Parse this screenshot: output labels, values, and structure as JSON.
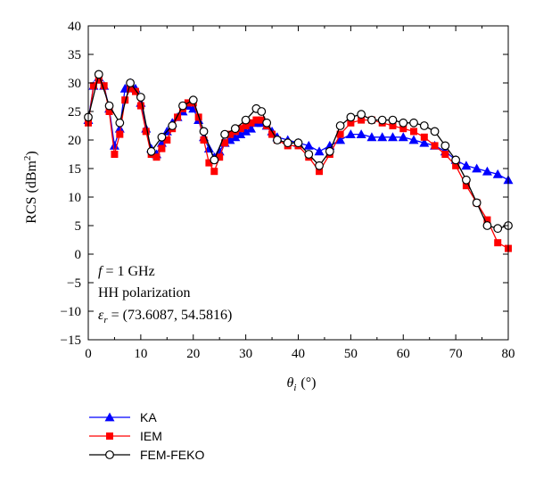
{
  "chart_data": {
    "type": "line",
    "xlabel_symbol": "θ",
    "xlabel_sub": "i",
    "xlabel_unit": "(°)",
    "ylabel_text": "RCS (dBm",
    "ylabel_sup": "2",
    "ylabel_close": ")",
    "xlim": [
      0,
      80
    ],
    "ylim": [
      -15,
      40
    ],
    "xticks": [
      0,
      10,
      20,
      30,
      40,
      50,
      60,
      70,
      80
    ],
    "yticks": [
      -15,
      -10,
      -5,
      0,
      5,
      10,
      15,
      20,
      25,
      30,
      35,
      40
    ],
    "grid": false,
    "legend_position": "bottom-left",
    "annotations": {
      "freq_var": "f",
      "freq_rest": " = 1 GHz",
      "polarization": "HH polarization",
      "eps_symbol": "ε",
      "eps_sub": "r",
      "eps_rest": " = (73.6087, 54.5816)"
    },
    "series": [
      {
        "name": "KA",
        "color": "#0000ff",
        "marker": "triangle",
        "x": [
          0,
          1,
          2,
          3,
          4,
          5,
          6,
          7,
          8,
          9,
          10,
          11,
          12,
          13,
          14,
          15,
          16,
          17,
          18,
          19,
          20,
          21,
          22,
          23,
          24,
          25,
          26,
          27,
          28,
          29,
          30,
          31,
          32,
          33,
          34,
          35,
          36,
          38,
          40,
          42,
          44,
          46,
          48,
          50,
          52,
          54,
          56,
          58,
          60,
          62,
          64,
          66,
          68,
          70,
          72,
          74,
          76,
          78,
          80
        ],
        "y": [
          23.5,
          29.5,
          31,
          29.5,
          25.5,
          19,
          22,
          29,
          30,
          29,
          26.5,
          22,
          18.5,
          17.5,
          19.5,
          21.5,
          23,
          24,
          25,
          26,
          25.5,
          23.5,
          20.5,
          18.5,
          17,
          18,
          19.5,
          20,
          20.5,
          21,
          21.5,
          22,
          23,
          23,
          22.5,
          21.5,
          20.5,
          20,
          19.5,
          19,
          18,
          19,
          20,
          21,
          21,
          20.5,
          20.5,
          20.5,
          20.5,
          20,
          19.5,
          19,
          18,
          16.5,
          15.5,
          15,
          14.5,
          14,
          13
        ]
      },
      {
        "name": "IEM",
        "color": "#ff0000",
        "marker": "square",
        "x": [
          0,
          1,
          2,
          3,
          4,
          5,
          6,
          7,
          8,
          9,
          10,
          11,
          12,
          13,
          14,
          15,
          16,
          17,
          18,
          19,
          20,
          21,
          22,
          23,
          24,
          25,
          26,
          27,
          28,
          29,
          30,
          31,
          32,
          33,
          34,
          35,
          36,
          38,
          40,
          42,
          44,
          46,
          48,
          50,
          52,
          54,
          56,
          58,
          60,
          62,
          64,
          66,
          68,
          70,
          72,
          74,
          76,
          78,
          80
        ],
        "y": [
          23,
          29.5,
          30.5,
          29.5,
          25,
          17.5,
          21,
          27,
          29,
          28.5,
          26,
          21.5,
          17.5,
          17,
          18.5,
          20,
          22,
          24,
          25.5,
          26.5,
          26.5,
          24,
          20,
          16,
          14.5,
          17,
          19.5,
          21,
          21.5,
          22,
          22.5,
          23,
          23.5,
          23.5,
          22.5,
          21,
          20,
          19,
          19,
          17,
          14.5,
          17.5,
          21,
          23,
          23.5,
          23.5,
          23,
          22.5,
          22,
          21.5,
          20.5,
          19,
          17.5,
          15.5,
          12,
          9,
          6,
          2,
          1
        ]
      },
      {
        "name": "FEM-FEKO",
        "color": "#000000",
        "marker": "circle",
        "x": [
          0,
          2,
          4,
          6,
          8,
          10,
          12,
          14,
          16,
          18,
          20,
          22,
          24,
          26,
          28,
          30,
          32,
          33,
          34,
          36,
          38,
          40,
          42,
          44,
          46,
          48,
          50,
          52,
          54,
          56,
          58,
          60,
          62,
          64,
          66,
          68,
          70,
          72,
          74,
          76,
          78,
          80
        ],
        "y": [
          24,
          31.5,
          26,
          23,
          30,
          27.5,
          18,
          20.5,
          22.5,
          26,
          27,
          21.5,
          16.5,
          21,
          22,
          23.5,
          25.5,
          25,
          23,
          20,
          19.5,
          19.5,
          17.5,
          15.5,
          18,
          22.5,
          24,
          24.5,
          23.5,
          23.5,
          23.5,
          23,
          23,
          22.5,
          21.5,
          19,
          16.5,
          13,
          9,
          5,
          4.5,
          5
        ]
      }
    ]
  }
}
